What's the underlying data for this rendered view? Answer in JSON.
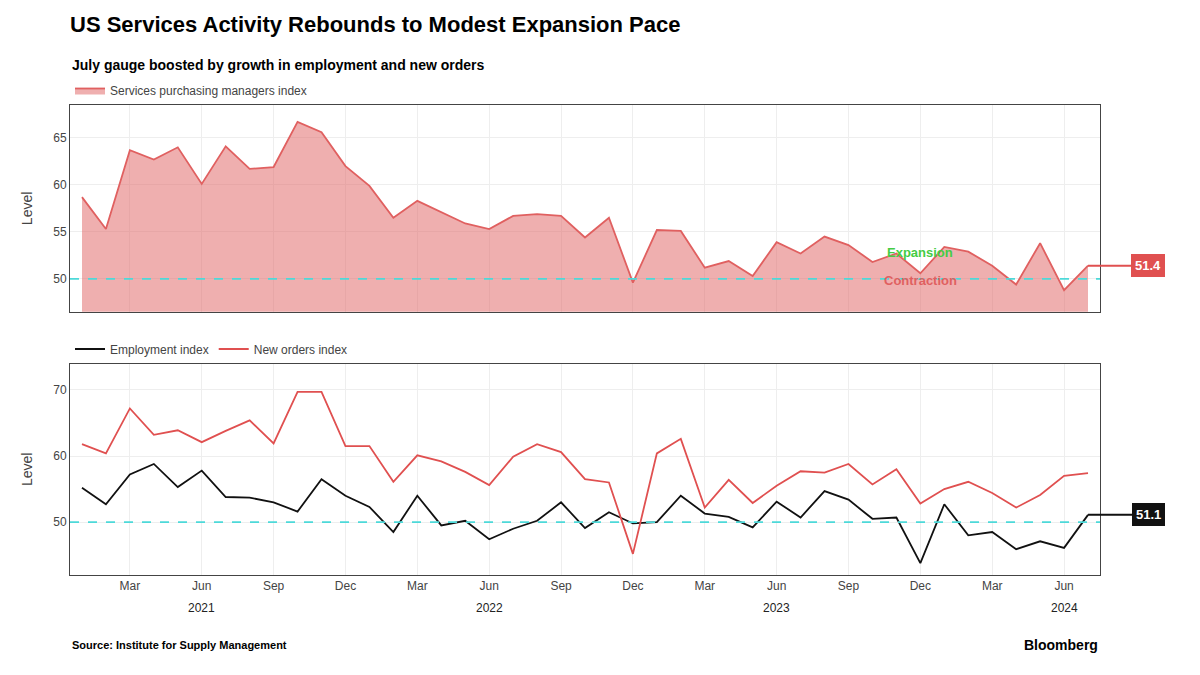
{
  "chart_data": [
    {
      "type": "area",
      "title": "US Services Activity Rebounds to Modest Expansion Pace",
      "subtitle": "July gauge boosted by growth in employment and new orders",
      "ylabel": "Level",
      "categories": [
        null,
        null,
        "Mar",
        null,
        null,
        "Jun",
        null,
        null,
        "Sep",
        null,
        null,
        "Dec",
        null,
        null,
        "Mar",
        null,
        null,
        "Jun",
        null,
        null,
        "Sep",
        null,
        null,
        "Dec",
        null,
        null,
        "Mar",
        null,
        null,
        "Jun",
        null,
        null,
        "Sep",
        null,
        null,
        "Dec",
        null,
        null,
        "Mar",
        null,
        null,
        "Jun",
        null
      ],
      "series": [
        {
          "name": "Services purchasing managers index",
          "color": "#e06060",
          "values": [
            58.7,
            55.3,
            63.7,
            62.7,
            64.0,
            60.1,
            64.1,
            61.7,
            61.9,
            66.7,
            65.6,
            62.0,
            59.9,
            56.5,
            58.3,
            57.1,
            55.9,
            55.3,
            56.7,
            56.9,
            56.7,
            54.4,
            56.5,
            49.6,
            55.2,
            55.1,
            51.2,
            51.9,
            50.3,
            53.9,
            52.7,
            54.5,
            53.6,
            51.8,
            52.7,
            50.6,
            53.4,
            52.9,
            51.4,
            49.4,
            53.8,
            48.8,
            51.4
          ]
        }
      ],
      "ylim": [
        46.5,
        68.5
      ],
      "yticks": [
        50,
        55,
        60,
        65
      ],
      "grid": true,
      "legend": "upper left",
      "tick_labels": "y",
      "reference_line": {
        "y": 50,
        "color": "#4dd9d9",
        "line_style": "dashed"
      },
      "annotations": [
        {
          "text": "Expansion",
          "x": 35,
          "y": 51.8,
          "color": "#44cc44"
        },
        {
          "text": "Contraction",
          "x": 35,
          "y": 48.8,
          "color": "#e06060"
        }
      ],
      "last_value": {
        "text": "51.4",
        "x": 42,
        "y": 51.4,
        "color": "#e05050"
      }
    },
    {
      "type": "line",
      "ylabel": "Level",
      "categories": [
        null,
        null,
        "Mar",
        null,
        null,
        "Jun",
        null,
        null,
        "Sep",
        null,
        null,
        "Dec",
        null,
        null,
        "Mar",
        null,
        null,
        "Jun",
        null,
        null,
        "Sep",
        null,
        null,
        "Dec",
        null,
        null,
        "Mar",
        null,
        null,
        "Jun",
        null,
        null,
        "Sep",
        null,
        null,
        "Dec",
        null,
        null,
        "Mar",
        null,
        null,
        "Jun",
        null
      ],
      "series": [
        {
          "name": "Employment index",
          "color": "#111111",
          "values": [
            55.2,
            52.7,
            57.2,
            58.8,
            55.3,
            57.8,
            53.8,
            53.7,
            53.0,
            51.6,
            56.5,
            54.0,
            52.3,
            48.5,
            54.0,
            49.5,
            50.2,
            47.4,
            49.0,
            50.2,
            53.0,
            49.1,
            51.5,
            49.8,
            50.0,
            54.0,
            51.3,
            50.8,
            49.2,
            53.1,
            50.7,
            54.7,
            53.4,
            50.5,
            50.7,
            43.8,
            52.7,
            48.0,
            48.5,
            45.9,
            47.1,
            46.1,
            51.1
          ]
        },
        {
          "name": "New orders index",
          "color": "#e05050",
          "values": [
            61.8,
            60.4,
            67.2,
            63.2,
            63.9,
            62.1,
            63.8,
            65.4,
            61.9,
            69.7,
            69.7,
            61.5,
            61.5,
            56.1,
            60.1,
            59.2,
            57.6,
            55.6,
            59.9,
            61.8,
            60.6,
            56.5,
            56.0,
            45.2,
            60.4,
            62.6,
            52.2,
            56.4,
            52.9,
            55.5,
            57.7,
            57.5,
            58.8,
            55.7,
            58.0,
            52.8,
            55.0,
            56.1,
            54.4,
            52.2,
            54.1,
            57.0,
            57.4
          ]
        }
      ],
      "ylim": [
        42,
        74
      ],
      "yticks": [
        50,
        60,
        70
      ],
      "grid": true,
      "legend": "upper left",
      "reference_line": {
        "y": 50,
        "color": "#4dd9d9",
        "line_style": "dashed"
      },
      "annotations": [
        {
          "text": "2021",
          "x": 5
        },
        {
          "text": "2022",
          "x": 17
        },
        {
          "text": "2023",
          "x": 29
        },
        {
          "text": "2024",
          "x": 41
        }
      ],
      "last_value": {
        "text": "51.1",
        "x": 42,
        "y": 51.1,
        "color": "#111111"
      },
      "source": "Source: Institute for Supply Management",
      "credit": "Bloomberg"
    }
  ]
}
